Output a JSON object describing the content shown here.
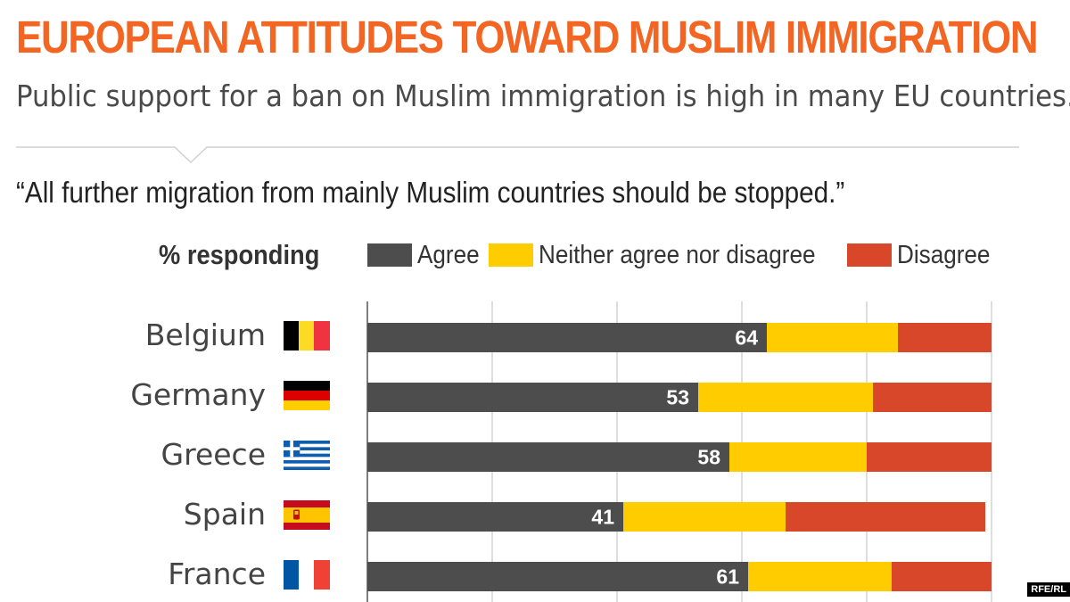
{
  "title": "EUROPEAN ATTITUDES TOWARD MUSLIM IMMIGRATION",
  "subtitle": "Public support for a ban on Muslim immigration is high in many EU countries.",
  "quote": "“All further migration from mainly Muslim countries should be stopped.”",
  "responding_label": "% responding",
  "credit": "RFE/RL",
  "colors": {
    "title": "#f26522",
    "agree": "#4d4d4d",
    "neither": "#ffcc00",
    "disagree": "#d9472b"
  },
  "legend": [
    {
      "label": "Agree",
      "color": "#4d4d4d"
    },
    {
      "label": "Neither agree nor disagree",
      "color": "#ffcc00"
    },
    {
      "label": "Disagree",
      "color": "#d9472b"
    }
  ],
  "countries": [
    {
      "name": "Belgium",
      "flag": "belgium-flag"
    },
    {
      "name": "Germany",
      "flag": "germany-flag"
    },
    {
      "name": "Greece",
      "flag": "greece-flag"
    },
    {
      "name": "Spain",
      "flag": "spain-flag"
    },
    {
      "name": "France",
      "flag": "france-flag"
    }
  ],
  "chart_data": {
    "type": "bar",
    "stacked": true,
    "orientation": "horizontal",
    "categories": [
      "Belgium",
      "Germany",
      "Greece",
      "Spain",
      "France"
    ],
    "series": [
      {
        "name": "Agree",
        "values": [
          64,
          53,
          58,
          41,
          61
        ],
        "labels_shown": true
      },
      {
        "name": "Neither agree nor disagree",
        "values": [
          21,
          28,
          22,
          26,
          23
        ]
      },
      {
        "name": "Disagree",
        "values": [
          15,
          19,
          20,
          32,
          16
        ]
      }
    ],
    "xlim": [
      0,
      100
    ],
    "grid": true
  }
}
